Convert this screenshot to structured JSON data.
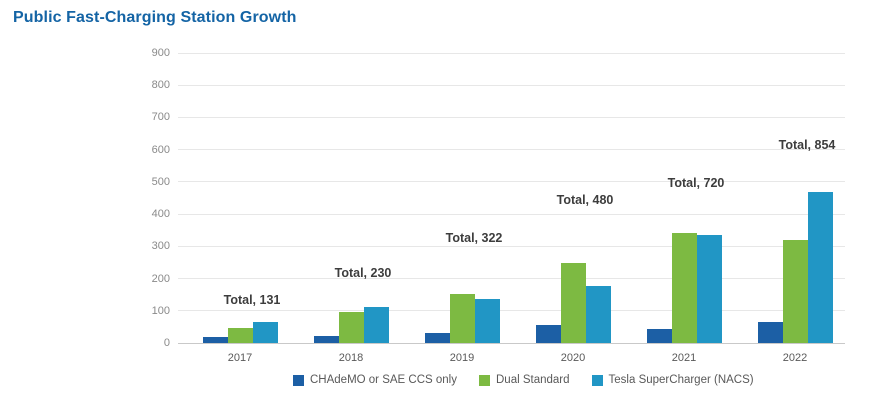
{
  "title": "Public Fast-Charging Station Growth",
  "chart_data": {
    "type": "bar",
    "title": "Public Fast-Charging Station Growth",
    "categories": [
      "2017",
      "2018",
      "2019",
      "2020",
      "2021",
      "2022"
    ],
    "series": [
      {
        "name": "CHAdeMO or SAE CCS only",
        "color": "#1c5fa5",
        "values": [
          19,
          23,
          32,
          55,
          45,
          65
        ]
      },
      {
        "name": "Dual Standard",
        "color": "#7dba42",
        "values": [
          46,
          95,
          153,
          247,
          340,
          320
        ]
      },
      {
        "name": "Tesla SuperCharger (NACS)",
        "color": "#2196c5",
        "values": [
          66,
          112,
          137,
          178,
          335,
          469
        ]
      }
    ],
    "totals": [
      131,
      230,
      322,
      480,
      720,
      854
    ],
    "total_labels": [
      "Total, 131",
      "Total, 230",
      "Total, 322",
      "Total, 480",
      "Total, 720",
      "Total, 854"
    ],
    "yticks": [
      0,
      100,
      200,
      300,
      400,
      500,
      600,
      700,
      800,
      900
    ],
    "ylim": [
      0,
      900
    ],
    "grid": true,
    "legend_position": "bottom",
    "xlabel": "",
    "ylabel": ""
  },
  "colors": {
    "title": "#1464a5",
    "grid": "#e7e7e7",
    "axis_line": "#c9c9c9",
    "tick_label": "#8a8a8a",
    "year_label": "#595959",
    "total_label": "#3d3d3d",
    "legend_text": "#595959",
    "background": "#ffffff"
  }
}
